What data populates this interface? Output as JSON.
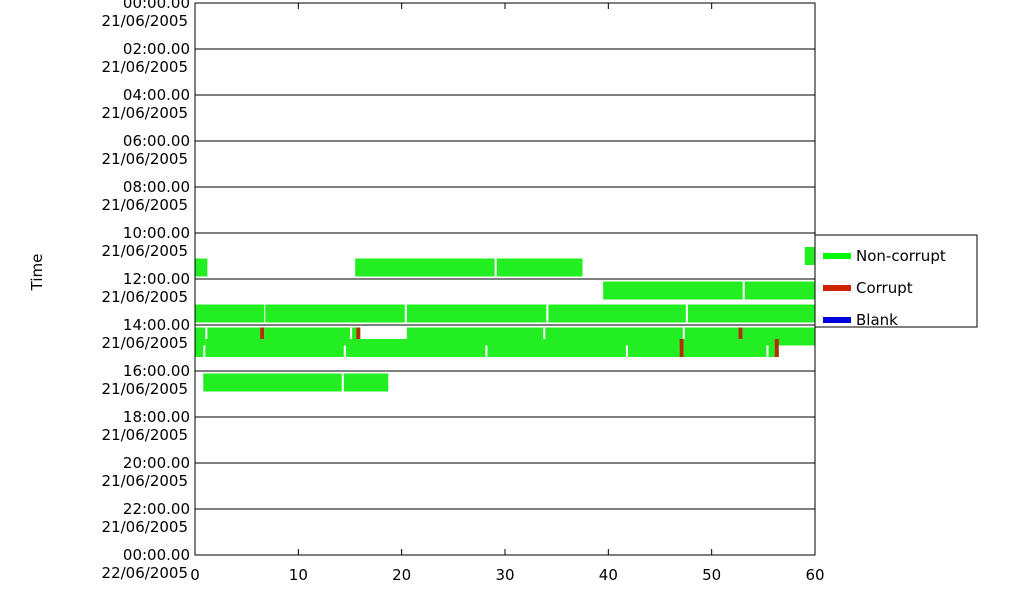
{
  "chart_data": {
    "type": "timeline",
    "ylabel": "Time",
    "x_ticks": [
      "0",
      "10",
      "20",
      "30",
      "40",
      "50",
      "60"
    ],
    "xlim": [
      0,
      60
    ],
    "y_ticks": [
      {
        "time": "00:00.00",
        "date": "21/06/2005"
      },
      {
        "time": "02:00.00",
        "date": "21/06/2005"
      },
      {
        "time": "04:00.00",
        "date": "21/06/2005"
      },
      {
        "time": "06:00.00",
        "date": "21/06/2005"
      },
      {
        "time": "08:00.00",
        "date": "21/06/2005"
      },
      {
        "time": "10:00.00",
        "date": "21/06/2005"
      },
      {
        "time": "12:00.00",
        "date": "21/06/2005"
      },
      {
        "time": "14:00.00",
        "date": "21/06/2005"
      },
      {
        "time": "16:00.00",
        "date": "21/06/2005"
      },
      {
        "time": "18:00.00",
        "date": "21/06/2005"
      },
      {
        "time": "20:00.00",
        "date": "21/06/2005"
      },
      {
        "time": "22:00.00",
        "date": "21/06/2005"
      },
      {
        "time": "00:00.00",
        "date": "22/06/2005"
      }
    ],
    "legend": {
      "placement": "right",
      "entries": [
        {
          "label": "Non-corrupt",
          "color": "#00ff00"
        },
        {
          "label": "Corrupt",
          "color": "#cc2200"
        },
        {
          "label": "Blank",
          "color": "#0000dd"
        }
      ]
    },
    "colors": {
      "non_corrupt": "#22ee22",
      "corrupt": "#aa3300",
      "blank": "#0000dd"
    },
    "rows": [
      {
        "hour": 11.0,
        "segments": [
          {
            "start": 59.0,
            "end": 60.0,
            "type": "non_corrupt"
          }
        ]
      },
      {
        "hour": 11.5,
        "segments": [
          {
            "start": 0.0,
            "end": 1.2,
            "type": "non_corrupt"
          },
          {
            "start": 15.5,
            "end": 29.0,
            "type": "non_corrupt"
          },
          {
            "start": 29.2,
            "end": 37.5,
            "type": "non_corrupt"
          }
        ]
      },
      {
        "hour": 12.5,
        "segments": [
          {
            "start": 39.5,
            "end": 53.0,
            "type": "non_corrupt"
          },
          {
            "start": 53.2,
            "end": 60.0,
            "type": "non_corrupt"
          }
        ]
      },
      {
        "hour": 13.5,
        "segments": [
          {
            "start": 0.0,
            "end": 6.7,
            "type": "non_corrupt"
          },
          {
            "start": 6.8,
            "end": 20.3,
            "type": "non_corrupt"
          },
          {
            "start": 20.5,
            "end": 34.0,
            "type": "non_corrupt"
          },
          {
            "start": 34.2,
            "end": 47.5,
            "type": "non_corrupt"
          },
          {
            "start": 47.7,
            "end": 60.0,
            "type": "non_corrupt"
          }
        ]
      },
      {
        "hour": 14.5,
        "segments": [
          {
            "start": 0.0,
            "end": 1.0,
            "type": "non_corrupt"
          },
          {
            "start": 1.2,
            "end": 6.3,
            "type": "non_corrupt"
          },
          {
            "start": 6.3,
            "end": 6.7,
            "type": "corrupt"
          },
          {
            "start": 6.7,
            "end": 15.0,
            "type": "non_corrupt"
          },
          {
            "start": 15.2,
            "end": 15.6,
            "type": "non_corrupt"
          },
          {
            "start": 15.6,
            "end": 16.0,
            "type": "corrupt"
          },
          {
            "start": 20.5,
            "end": 33.7,
            "type": "non_corrupt"
          },
          {
            "start": 33.9,
            "end": 47.2,
            "type": "non_corrupt"
          },
          {
            "start": 47.4,
            "end": 52.6,
            "type": "non_corrupt"
          },
          {
            "start": 52.6,
            "end": 53.0,
            "type": "corrupt"
          },
          {
            "start": 53.0,
            "end": 60.0,
            "type": "non_corrupt"
          }
        ]
      },
      {
        "hour": 15.0,
        "segments": [
          {
            "start": 0.0,
            "end": 0.8,
            "type": "non_corrupt"
          },
          {
            "start": 1.0,
            "end": 14.4,
            "type": "non_corrupt"
          },
          {
            "start": 14.6,
            "end": 28.1,
            "type": "non_corrupt"
          },
          {
            "start": 28.3,
            "end": 41.7,
            "type": "non_corrupt"
          },
          {
            "start": 41.9,
            "end": 46.9,
            "type": "non_corrupt"
          },
          {
            "start": 46.9,
            "end": 47.3,
            "type": "corrupt"
          },
          {
            "start": 47.3,
            "end": 55.3,
            "type": "non_corrupt"
          },
          {
            "start": 55.5,
            "end": 56.1,
            "type": "non_corrupt"
          },
          {
            "start": 56.1,
            "end": 56.5,
            "type": "corrupt"
          }
        ]
      },
      {
        "hour": 16.5,
        "segments": [
          {
            "start": 0.8,
            "end": 14.2,
            "type": "non_corrupt"
          },
          {
            "start": 14.4,
            "end": 18.7,
            "type": "non_corrupt"
          }
        ]
      }
    ]
  }
}
